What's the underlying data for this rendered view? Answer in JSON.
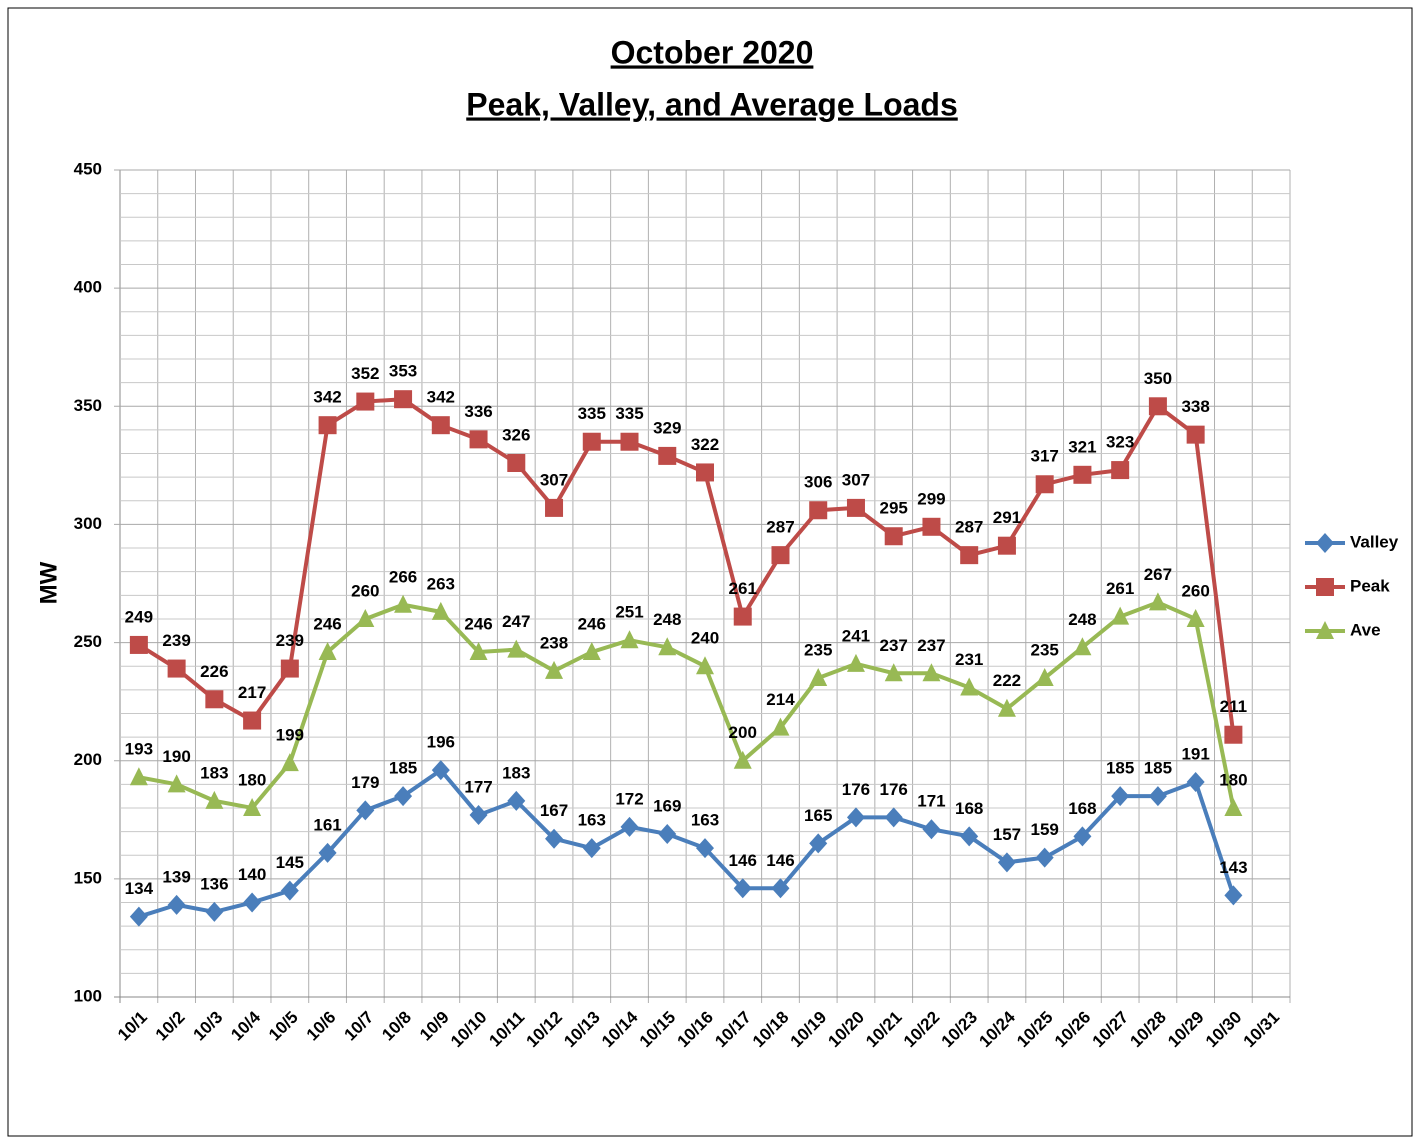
{
  "chart_data": {
    "type": "line",
    "title": "October 2020",
    "subtitle": "Peak, Valley, and Average Loads",
    "y_label": "MW",
    "categories": [
      "10/1",
      "10/2",
      "10/3",
      "10/4",
      "10/5",
      "10/6",
      "10/7",
      "10/8",
      "10/9",
      "10/10",
      "10/11",
      "10/12",
      "10/13",
      "10/14",
      "10/15",
      "10/16",
      "10/17",
      "10/18",
      "10/19",
      "10/20",
      "10/21",
      "10/22",
      "10/23",
      "10/24",
      "10/25",
      "10/26",
      "10/27",
      "10/28",
      "10/29",
      "10/30",
      "10/31"
    ],
    "series": [
      {
        "name": "Valley",
        "color": "#4a7ebb",
        "marker": "diamond",
        "values": [
          134,
          139,
          136,
          140,
          145,
          161,
          179,
          185,
          196,
          177,
          183,
          167,
          163,
          172,
          169,
          163,
          146,
          146,
          165,
          176,
          176,
          171,
          168,
          157,
          159,
          168,
          185,
          185,
          191,
          143,
          null
        ]
      },
      {
        "name": "Peak",
        "color": "#be4b48",
        "marker": "square",
        "values": [
          249,
          239,
          226,
          217,
          239,
          342,
          352,
          353,
          342,
          336,
          326,
          307,
          335,
          335,
          329,
          322,
          261,
          287,
          306,
          307,
          295,
          299,
          287,
          291,
          317,
          321,
          323,
          350,
          338,
          211,
          null
        ]
      },
      {
        "name": "Ave",
        "color": "#98b954",
        "marker": "triangle",
        "values": [
          193,
          190,
          183,
          180,
          199,
          246,
          260,
          266,
          263,
          246,
          247,
          238,
          246,
          251,
          248,
          240,
          200,
          214,
          235,
          241,
          237,
          237,
          231,
          222,
          235,
          248,
          261,
          267,
          260,
          180,
          null
        ]
      }
    ],
    "ylim": [
      100,
      450
    ],
    "yticks": [
      100,
      150,
      200,
      250,
      300,
      350,
      400,
      450
    ],
    "grid": true,
    "legend": "right"
  }
}
